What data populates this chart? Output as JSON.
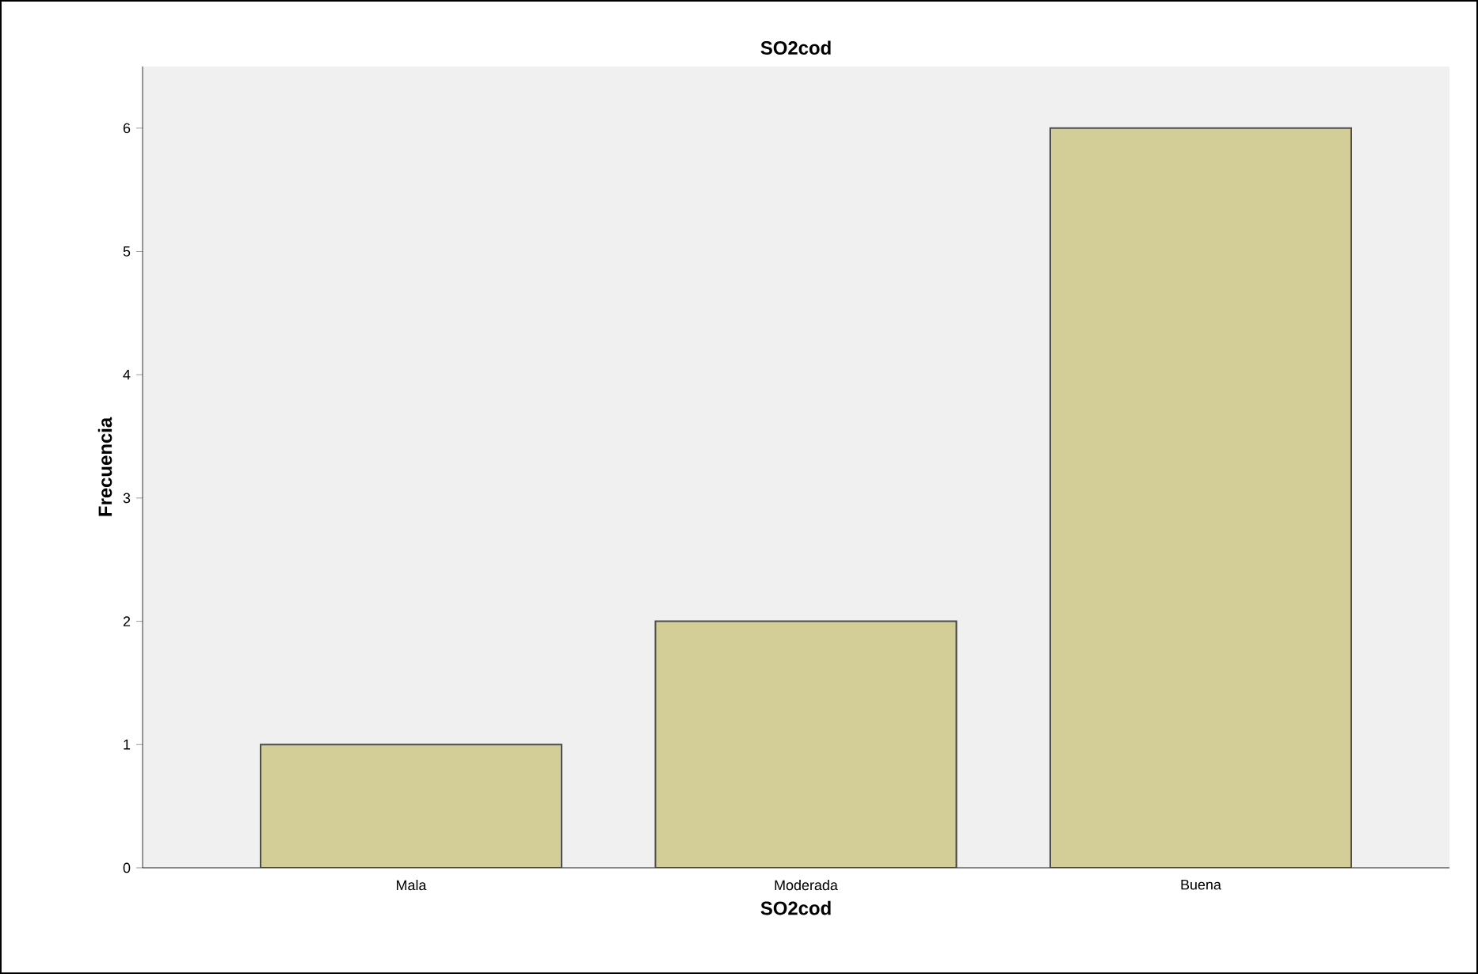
{
  "chart_data": {
    "type": "bar",
    "title": "SO2cod",
    "xlabel": "SO2cod",
    "ylabel": "Frecuencia",
    "categories": [
      "Mala",
      "Moderada",
      "Buena"
    ],
    "values": [
      1,
      2,
      6
    ],
    "color": "#d3ce97",
    "ylim": [
      0,
      6.5
    ],
    "yticks": [
      0,
      1,
      2,
      3,
      4,
      5,
      6
    ],
    "grid": false
  }
}
